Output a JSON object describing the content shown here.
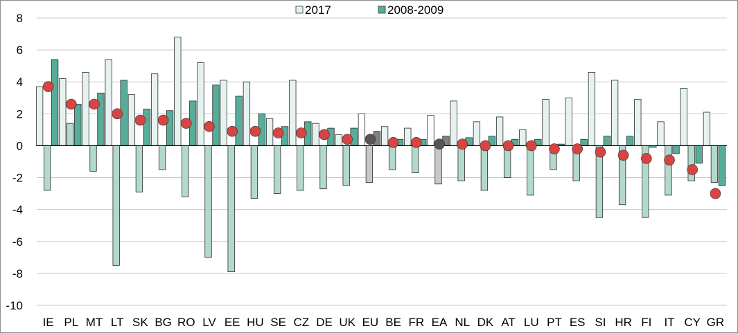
{
  "chart_data": {
    "type": "bar",
    "categories": [
      "IE",
      "PL",
      "MT",
      "LT",
      "SK",
      "BG",
      "RO",
      "LV",
      "EE",
      "HU",
      "SE",
      "CZ",
      "DE",
      "UK",
      "EU",
      "BE",
      "FR",
      "EA",
      "NL",
      "DK",
      "AT",
      "LU",
      "PT",
      "ES",
      "SI",
      "HR",
      "FI",
      "IT",
      "CY",
      "GR"
    ],
    "highlight_categories": [
      "EU",
      "EA"
    ],
    "series": [
      {
        "name": "2017",
        "type": "bar",
        "color": "#e6f2ef",
        "values": [
          3.7,
          4.2,
          4.6,
          5.4,
          3.2,
          4.5,
          6.8,
          5.2,
          4.1,
          4.0,
          1.7,
          4.1,
          1.4,
          0.7,
          2.0,
          1.2,
          1.1,
          1.9,
          2.8,
          1.5,
          1.8,
          1.0,
          2.9,
          3.0,
          4.6,
          4.1,
          2.9,
          1.5,
          3.6,
          2.1
        ]
      },
      {
        "type": "bar",
        "color": "#b2d9cc",
        "values": [
          -2.8,
          1.4,
          -1.6,
          -7.5,
          -2.9,
          -1.5,
          -3.2,
          -7.0,
          -7.9,
          -3.3,
          -3.0,
          -2.8,
          -2.7,
          -2.5,
          -2.3,
          -1.5,
          -1.7,
          -2.4,
          -2.2,
          -2.8,
          -2.0,
          -3.1,
          -1.5,
          -2.2,
          -4.5,
          -3.7,
          -4.5,
          -3.1,
          -2.2,
          -2.3
        ]
      },
      {
        "name": "2008-2009",
        "type": "bar",
        "color": "#56ad99",
        "values": [
          5.4,
          2.6,
          3.3,
          4.1,
          2.3,
          2.2,
          2.8,
          3.8,
          3.1,
          2.0,
          1.2,
          1.5,
          1.1,
          1.1,
          0.9,
          0.4,
          0.4,
          0.6,
          0.5,
          0.6,
          0.4,
          0.4,
          0.1,
          0.4,
          0.6,
          0.6,
          -0.1,
          -0.5,
          -1.1,
          -2.5
        ]
      },
      {
        "type": "marker",
        "color": "#d64444",
        "values": [
          3.7,
          2.6,
          2.6,
          2.0,
          1.6,
          1.6,
          1.4,
          1.2,
          0.9,
          0.9,
          0.8,
          0.8,
          0.7,
          0.4,
          0.4,
          0.2,
          0.2,
          0.1,
          0.1,
          0.0,
          0.0,
          0.0,
          -0.2,
          -0.2,
          -0.4,
          -0.6,
          -0.8,
          -0.9,
          -1.5,
          -3.0
        ]
      }
    ],
    "ylim": [
      -10,
      8
    ],
    "yticks": [
      -10,
      -8,
      -6,
      -4,
      -2,
      0,
      2,
      4,
      6,
      8
    ],
    "grid": true,
    "legend": "top-center",
    "neutral_colors": {
      "bar_light": "#ffffff",
      "bar_mid": "#c8c8c8",
      "bar_dark": "#808080",
      "marker": "#555555"
    }
  }
}
